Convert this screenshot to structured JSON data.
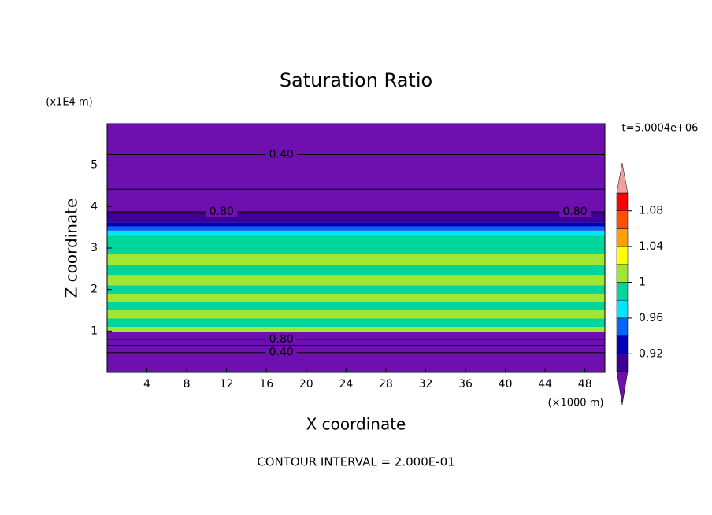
{
  "chart_data": {
    "type": "contour",
    "title": "Saturation Ratio",
    "x_label": "X coordinate",
    "y_label": "Z coordinate",
    "x_unit": "(×1000 m)",
    "y_unit": "(x1E4 m)",
    "time_label": "t=5.0004e+06",
    "footer": "CONTOUR INTERVAL = 2.000E-01",
    "xlim": [
      0,
      50
    ],
    "ylim": [
      0,
      6
    ],
    "xticks": [
      4,
      8,
      12,
      16,
      20,
      24,
      28,
      32,
      36,
      40,
      44,
      48
    ],
    "yticks": [
      1,
      2,
      3,
      4,
      5
    ],
    "layers": {
      "z": [
        0,
        0.97,
        1.1,
        1.3,
        1.5,
        1.7,
        1.9,
        2.1,
        2.35,
        2.6,
        2.85,
        3.05,
        3.3,
        3.42,
        3.52,
        3.62,
        3.85,
        6
      ],
      "values": [
        0.2,
        1.01,
        0.99,
        1.01,
        0.99,
        1.01,
        0.99,
        1.01,
        0.99,
        1.01,
        0.99,
        0.99,
        0.97,
        0.95,
        0.93,
        0.91,
        0.3
      ]
    },
    "contours": [
      {
        "level": 0.4,
        "z": 5.25,
        "label": "0.40"
      },
      {
        "level": 0.6,
        "z": 4.42
      },
      {
        "level": 0.8,
        "z": 3.87,
        "label": "0.80"
      },
      {
        "level": 0.8,
        "z": 0.8,
        "label": "0.80"
      },
      {
        "level": 0.6,
        "z": 0.65
      },
      {
        "level": 0.4,
        "z": 0.48,
        "label": "0.40"
      }
    ],
    "colorbar": {
      "levels": [
        0.9,
        0.92,
        0.94,
        0.96,
        0.98,
        1.0,
        1.02,
        1.04,
        1.06,
        1.08,
        1.1
      ],
      "colors": [
        "#3c0096",
        "#0000b4",
        "#0064ff",
        "#00e6ff",
        "#00d69b",
        "#a0e632",
        "#ffff00",
        "#ffa000",
        "#ff5000",
        "#ff0000"
      ],
      "under": "#6e0fb0",
      "over": "#f0a0a0",
      "ticks": [
        0.92,
        0.96,
        1,
        1.04,
        1.08
      ]
    }
  }
}
